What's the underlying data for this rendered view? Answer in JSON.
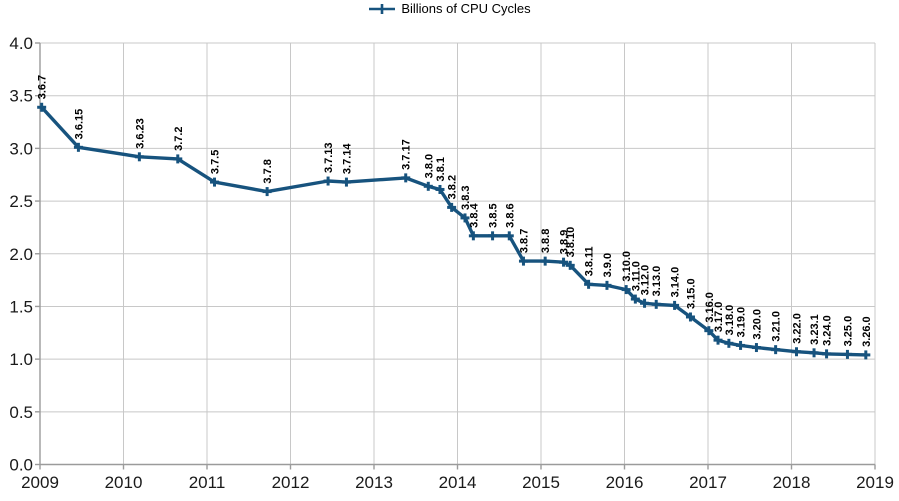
{
  "legend": {
    "label": "Billions of CPU Cycles"
  },
  "colors": {
    "series": "#17537E",
    "grid": "#C8C8C8",
    "axis": "#9B9B9B",
    "tick_label": "#1A1A1A",
    "data_label": "#000000",
    "background": "#FFFFFF"
  },
  "chart_data": {
    "type": "line",
    "title": "",
    "series_name": "Billions of CPU Cycles",
    "legend_position": "top-center",
    "marker_style": "plus",
    "grid": true,
    "xlabel": "",
    "ylabel": "",
    "xlim": [
      2009,
      2019
    ],
    "ylim": [
      0.0,
      4.0
    ],
    "x_ticks": [
      "2009",
      "2010",
      "2011",
      "2012",
      "2013",
      "2014",
      "2015",
      "2016",
      "2017",
      "2018",
      "2019"
    ],
    "y_ticks": [
      "0.0",
      "0.5",
      "1.0",
      "1.5",
      "2.0",
      "2.5",
      "3.0",
      "3.5",
      "4.0"
    ],
    "points": [
      {
        "version": "3.6.7",
        "year": 2009.02,
        "value": 3.39
      },
      {
        "version": "3.6.15",
        "year": 2009.46,
        "value": 3.01
      },
      {
        "version": "3.6.23",
        "year": 2010.19,
        "value": 2.92
      },
      {
        "version": "3.7.2",
        "year": 2010.65,
        "value": 2.9
      },
      {
        "version": "3.7.5",
        "year": 2011.09,
        "value": 2.68
      },
      {
        "version": "3.7.8",
        "year": 2011.72,
        "value": 2.59
      },
      {
        "version": "3.7.13",
        "year": 2012.45,
        "value": 2.69
      },
      {
        "version": "3.7.14",
        "year": 2012.67,
        "value": 2.68
      },
      {
        "version": "3.7.17",
        "year": 2013.38,
        "value": 2.72
      },
      {
        "version": "3.8.0",
        "year": 2013.65,
        "value": 2.64
      },
      {
        "version": "3.8.1",
        "year": 2013.79,
        "value": 2.61
      },
      {
        "version": "3.8.2",
        "year": 2013.93,
        "value": 2.44
      },
      {
        "version": "3.8.3",
        "year": 2014.09,
        "value": 2.34
      },
      {
        "version": "3.8.4",
        "year": 2014.19,
        "value": 2.17
      },
      {
        "version": "3.8.5",
        "year": 2014.42,
        "value": 2.17
      },
      {
        "version": "3.8.6",
        "year": 2014.62,
        "value": 2.17
      },
      {
        "version": "3.8.7",
        "year": 2014.79,
        "value": 1.93
      },
      {
        "version": "3.8.8",
        "year": 2015.05,
        "value": 1.93
      },
      {
        "version": "3.8.9",
        "year": 2015.27,
        "value": 1.92
      },
      {
        "version": "3.8.10",
        "year": 2015.35,
        "value": 1.89
      },
      {
        "version": "3.8.11",
        "year": 2015.57,
        "value": 1.71
      },
      {
        "version": "3.9.0",
        "year": 2015.79,
        "value": 1.7
      },
      {
        "version": "3.10.0",
        "year": 2016.02,
        "value": 1.66
      },
      {
        "version": "3.11.0",
        "year": 2016.13,
        "value": 1.57
      },
      {
        "version": "3.12.0",
        "year": 2016.24,
        "value": 1.53
      },
      {
        "version": "3.13.0",
        "year": 2016.38,
        "value": 1.52
      },
      {
        "version": "3.14.0",
        "year": 2016.6,
        "value": 1.51
      },
      {
        "version": "3.15.0",
        "year": 2016.79,
        "value": 1.4
      },
      {
        "version": "3.16.0",
        "year": 2017.01,
        "value": 1.27
      },
      {
        "version": "3.17.0",
        "year": 2017.12,
        "value": 1.18
      },
      {
        "version": "3.18.0",
        "year": 2017.25,
        "value": 1.15
      },
      {
        "version": "3.19.0",
        "year": 2017.39,
        "value": 1.13
      },
      {
        "version": "3.20.0",
        "year": 2017.58,
        "value": 1.11
      },
      {
        "version": "3.21.0",
        "year": 2017.81,
        "value": 1.09
      },
      {
        "version": "3.22.0",
        "year": 2018.06,
        "value": 1.07
      },
      {
        "version": "3.23.1",
        "year": 2018.27,
        "value": 1.06
      },
      {
        "version": "3.24.0",
        "year": 2018.42,
        "value": 1.05
      },
      {
        "version": "3.25.0",
        "year": 2018.67,
        "value": 1.045
      },
      {
        "version": "3.26.0",
        "year": 2018.89,
        "value": 1.04
      }
    ]
  }
}
